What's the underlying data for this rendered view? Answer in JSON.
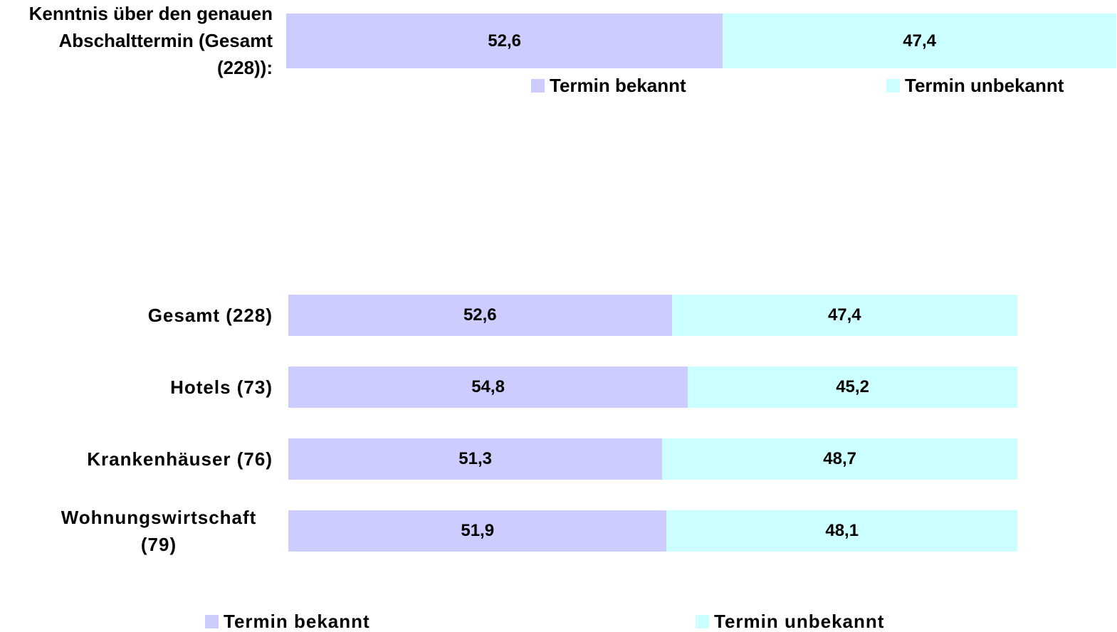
{
  "chart_data": [
    {
      "type": "bar",
      "categories": [
        "Kenntnis über den genauen Abschalttermin (Gesamt (228)):"
      ],
      "xlim": [
        0,
        100
      ],
      "series": [
        {
          "name": "Termin bekannt",
          "color": "#ccccff",
          "values": [
            52.6
          ],
          "value_labels": [
            "52,6"
          ]
        },
        {
          "name": "Termin unbekannt",
          "color": "#ccffff",
          "values": [
            47.4
          ],
          "value_labels": [
            "47,4"
          ]
        }
      ]
    },
    {
      "type": "bar",
      "categories": [
        "Gesamt (228)",
        "Hotels (73)",
        "Krankenhäuser (76)",
        "Wohnungswirtschaft (79)"
      ],
      "xlim": [
        0,
        100
      ],
      "series": [
        {
          "name": "Termin bekannt",
          "color": "#ccccff",
          "values": [
            52.6,
            54.8,
            51.3,
            51.9
          ],
          "value_labels": [
            "52,6",
            "54,8",
            "51,3",
            "51,9"
          ]
        },
        {
          "name": "Termin unbekannt",
          "color": "#ccffff",
          "values": [
            47.4,
            45.2,
            48.7,
            48.1
          ],
          "value_labels": [
            "47,4",
            "45,2",
            "48,7",
            "48,1"
          ]
        }
      ]
    }
  ]
}
